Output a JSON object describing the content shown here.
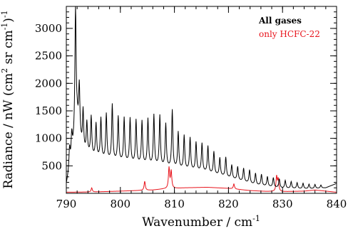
{
  "chart_data": {
    "type": "line",
    "title": "",
    "xlabel": "Wavenumber / cm",
    "xlabel_sup": "-1",
    "ylabel_parts": [
      "Radiance / nW (cm",
      "2",
      " sr cm",
      "-1",
      ")",
      "-1"
    ],
    "xlim": [
      790,
      840
    ],
    "ylim": [
      0,
      3400
    ],
    "x_ticks": [
      790,
      800,
      810,
      820,
      830,
      840
    ],
    "y_ticks": [
      500,
      1000,
      1500,
      2000,
      2500,
      3000
    ],
    "x_minor_step": 2,
    "y_minor_step": 100,
    "grid": false,
    "legend_position": "top-right",
    "series": [
      {
        "name": "All gases",
        "color": "#000000",
        "baseline": [
          [
            790.0,
            150
          ],
          [
            791.0,
            600
          ],
          [
            792.0,
            1300
          ],
          [
            793.0,
            750
          ],
          [
            795.0,
            650
          ],
          [
            797.0,
            600
          ],
          [
            800.0,
            560
          ],
          [
            805.0,
            500
          ],
          [
            810.0,
            440
          ],
          [
            815.0,
            390
          ],
          [
            820.0,
            280
          ],
          [
            825.0,
            150
          ],
          [
            830.0,
            90
          ],
          [
            835.0,
            80
          ],
          [
            838.0,
            100
          ],
          [
            840.0,
            180
          ]
        ],
        "peaks": [
          [
            790.6,
            800
          ],
          [
            791.0,
            1050
          ],
          [
            791.7,
            3400
          ],
          [
            792.4,
            1950
          ],
          [
            793.1,
            1500
          ],
          [
            793.8,
            1270
          ],
          [
            794.6,
            1380
          ],
          [
            795.5,
            1250
          ],
          [
            796.4,
            1350
          ],
          [
            797.4,
            1430
          ],
          [
            798.5,
            1600
          ],
          [
            799.6,
            1380
          ],
          [
            800.7,
            1360
          ],
          [
            801.8,
            1350
          ],
          [
            802.9,
            1320
          ],
          [
            804.0,
            1300
          ],
          [
            805.1,
            1340
          ],
          [
            806.2,
            1410
          ],
          [
            807.3,
            1400
          ],
          [
            808.4,
            1250
          ],
          [
            809.6,
            1500
          ],
          [
            810.7,
            1100
          ],
          [
            811.8,
            1040
          ],
          [
            812.9,
            1000
          ],
          [
            814.0,
            920
          ],
          [
            815.1,
            900
          ],
          [
            816.2,
            850
          ],
          [
            817.3,
            750
          ],
          [
            818.4,
            640
          ],
          [
            819.5,
            650
          ],
          [
            820.6,
            510
          ],
          [
            821.7,
            480
          ],
          [
            822.8,
            450
          ],
          [
            823.9,
            420
          ],
          [
            825.0,
            360
          ],
          [
            826.1,
            340
          ],
          [
            827.2,
            300
          ],
          [
            828.3,
            280
          ],
          [
            829.4,
            260
          ],
          [
            830.5,
            230
          ],
          [
            831.6,
            210
          ],
          [
            832.7,
            190
          ],
          [
            833.8,
            180
          ],
          [
            834.9,
            165
          ],
          [
            836.0,
            160
          ],
          [
            837.1,
            150
          ]
        ]
      },
      {
        "name": "only HCFC-22",
        "color": "#e8141c",
        "baseline": [
          [
            790.0,
            20
          ],
          [
            795.0,
            25
          ],
          [
            800.0,
            40
          ],
          [
            803.0,
            50
          ],
          [
            806.0,
            60
          ],
          [
            808.0,
            80
          ],
          [
            812.0,
            100
          ],
          [
            816.0,
            110
          ],
          [
            820.0,
            90
          ],
          [
            824.0,
            50
          ],
          [
            827.0,
            35
          ],
          [
            830.0,
            30
          ],
          [
            834.0,
            40
          ],
          [
            836.0,
            60
          ],
          [
            838.0,
            40
          ],
          [
            840.0,
            20
          ]
        ],
        "peaks": [
          [
            794.7,
            100
          ],
          [
            804.5,
            220
          ],
          [
            809.0,
            460
          ],
          [
            809.4,
            400
          ],
          [
            821.0,
            170
          ],
          [
            828.9,
            300
          ],
          [
            829.2,
            250
          ]
        ]
      }
    ]
  }
}
